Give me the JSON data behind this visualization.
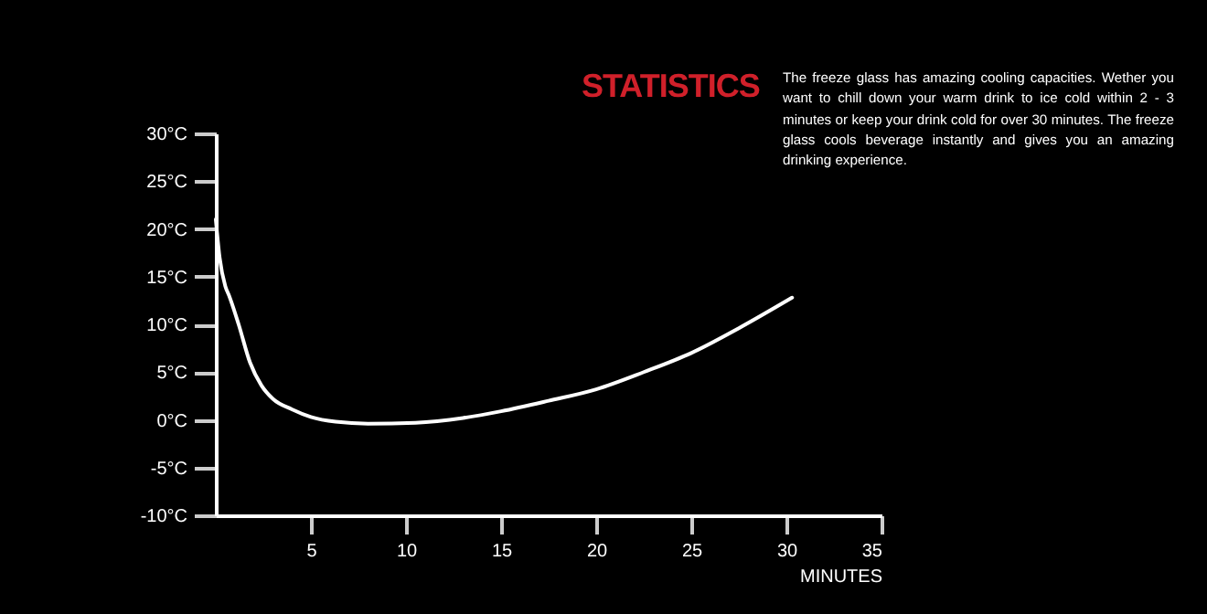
{
  "chart_data": {
    "type": "line",
    "title": "STATISTICS",
    "xlabel": "MINUTES",
    "annotations": [
      "The freeze glass has amazing cooling capacities. Wether you want to chill down your warm drink to ice cold within 2 - 3 minutes or keep your drink cold for over 30 minutes. The freeze glass cools beverage instantly and gives you an amazing drinking experience."
    ],
    "x": [
      0,
      0.2,
      0.5,
      0.7,
      1.2,
      1.8,
      2.4,
      3,
      4,
      5,
      6.3,
      8,
      10.5,
      13,
      15,
      17.5,
      20,
      22.5,
      25,
      27.5,
      30.3
    ],
    "series": [
      {
        "color": "#ffffff",
        "values": [
          21,
          17,
          14,
          13,
          10,
          6,
          3.6,
          2.2,
          1.1,
          0.3,
          -0.2,
          -0.4,
          -0.3,
          0.2,
          0.9,
          2,
          3.2,
          5,
          7,
          9.6,
          12.8
        ]
      }
    ],
    "xlim": [
      0,
      35
    ],
    "xticks": [
      5,
      10,
      15,
      20,
      25,
      30,
      35
    ],
    "ylim": [
      -10,
      30
    ],
    "yticks": [
      {
        "value": -10,
        "label": "-10°C"
      },
      {
        "value": -5,
        "label": "-5°C"
      },
      {
        "value": 0,
        "label": "0°C"
      },
      {
        "value": 5,
        "label": "5°C"
      },
      {
        "value": 10,
        "label": "10°C"
      },
      {
        "value": 15,
        "label": "15°C"
      },
      {
        "value": 20,
        "label": "20°C"
      },
      {
        "value": 25,
        "label": "25°C"
      },
      {
        "value": 30,
        "label": "30°C"
      }
    ],
    "grid": false,
    "legend": false,
    "marker": "none",
    "line_style": "solid"
  }
}
